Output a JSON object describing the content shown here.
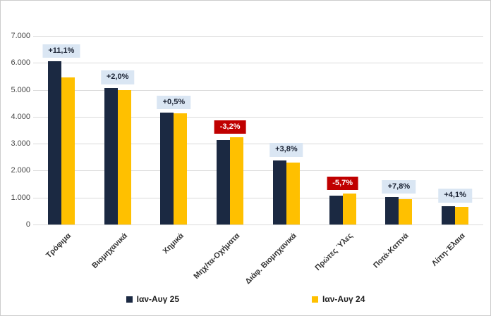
{
  "chart_data": {
    "type": "bar",
    "categories": [
      "Τρόφιμα",
      "Βιομηχανικά",
      "Χημικά",
      "Μηχ/τα-Οχήματα",
      "Διάφ. Βιομηχανικά",
      "Πρώτες Ύλες",
      "Ποτά-Καπνά",
      "Λίπη-Έλαια"
    ],
    "series": [
      {
        "name": "Ιαν-Αυγ 25",
        "color": "#1b2942",
        "values": [
          6050,
          5080,
          4160,
          3130,
          2390,
          1075,
          1025,
          690
        ]
      },
      {
        "name": "Ιαν-Αυγ 24",
        "color": "#ffc000",
        "values": [
          5450,
          4980,
          4140,
          3235,
          2300,
          1140,
          950,
          663
        ]
      }
    ],
    "delta_labels": [
      "+11,1%",
      "+2,0%",
      "+0,5%",
      "-3,2%",
      "+3,8%",
      "-5,7%",
      "+7,8%",
      "+4,1%"
    ],
    "title": "",
    "xlabel": "",
    "ylabel": "",
    "ylim": [
      0,
      7000
    ],
    "ytick_interval": 1000,
    "ytick_labels": [
      "7.000",
      "6.000",
      "5.000",
      "4.000",
      "3.000",
      "2.000",
      "1.000",
      "0"
    ],
    "grid": true,
    "legend_position": "bottom"
  },
  "colors": {
    "positive_label_bg": "#dae6f3",
    "positive_label_text": "#1a2233",
    "negative_label_bg": "#c00000",
    "negative_label_text": "#ffffff",
    "gridline": "#dadada",
    "axis_text": "#444444",
    "category_text": "#333333",
    "frame_border": "#cccccc"
  },
  "legend": {
    "items": [
      {
        "label": "Ιαν-Αυγ 25",
        "color": "#1b2942"
      },
      {
        "label": "Ιαν-Αυγ 24",
        "color": "#ffc000"
      }
    ]
  }
}
